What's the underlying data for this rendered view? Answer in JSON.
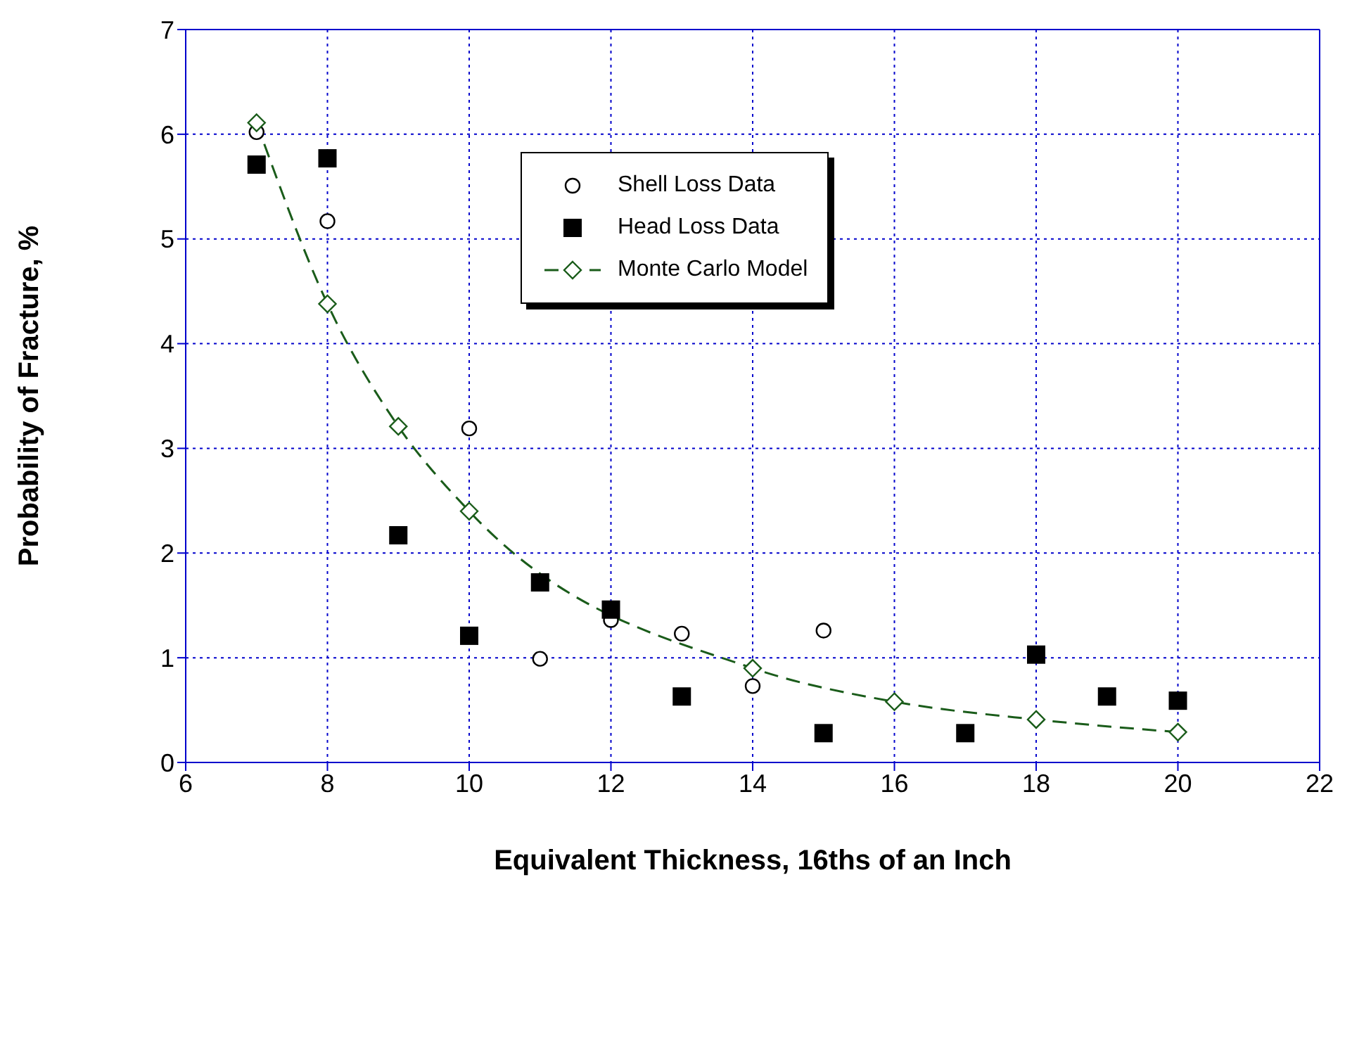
{
  "chart_data": {
    "type": "scatter",
    "xlabel": "Equivalent Thickness, 16ths of an Inch",
    "ylabel": "Probability of Fracture, %",
    "xlim": [
      6,
      22
    ],
    "xticks": [
      6,
      8,
      10,
      12,
      14,
      16,
      18,
      20,
      22
    ],
    "ylim": [
      0,
      7
    ],
    "yticks": [
      0,
      1,
      2,
      3,
      4,
      5,
      6,
      7
    ],
    "grid": true,
    "legend": "top",
    "series": [
      {
        "name": "Shell Loss Data",
        "marker": "circle",
        "color": "#000000",
        "x": [
          7,
          8,
          10,
          11,
          12,
          13,
          14,
          15
        ],
        "values": [
          6.02,
          5.17,
          3.19,
          0.99,
          1.36,
          1.23,
          0.73,
          1.26
        ]
      },
      {
        "name": "Head Loss Data",
        "marker": "square",
        "color": "#000000",
        "x": [
          7,
          8,
          9,
          10,
          11,
          12,
          13,
          15,
          17,
          18,
          19,
          20
        ],
        "values": [
          5.71,
          5.77,
          2.17,
          1.21,
          1.72,
          1.46,
          0.63,
          0.28,
          0.28,
          1.03,
          0.63,
          0.59
        ]
      },
      {
        "name": "Monte Carlo Model",
        "type": "line",
        "marker": "diamond",
        "line_style": "dashed",
        "color": "#1a5c1a",
        "x": [
          7,
          8,
          9,
          10,
          14,
          16,
          18,
          20
        ],
        "values": [
          6.11,
          4.38,
          3.21,
          2.4,
          0.9,
          0.58,
          0.41,
          0.29
        ]
      }
    ]
  }
}
